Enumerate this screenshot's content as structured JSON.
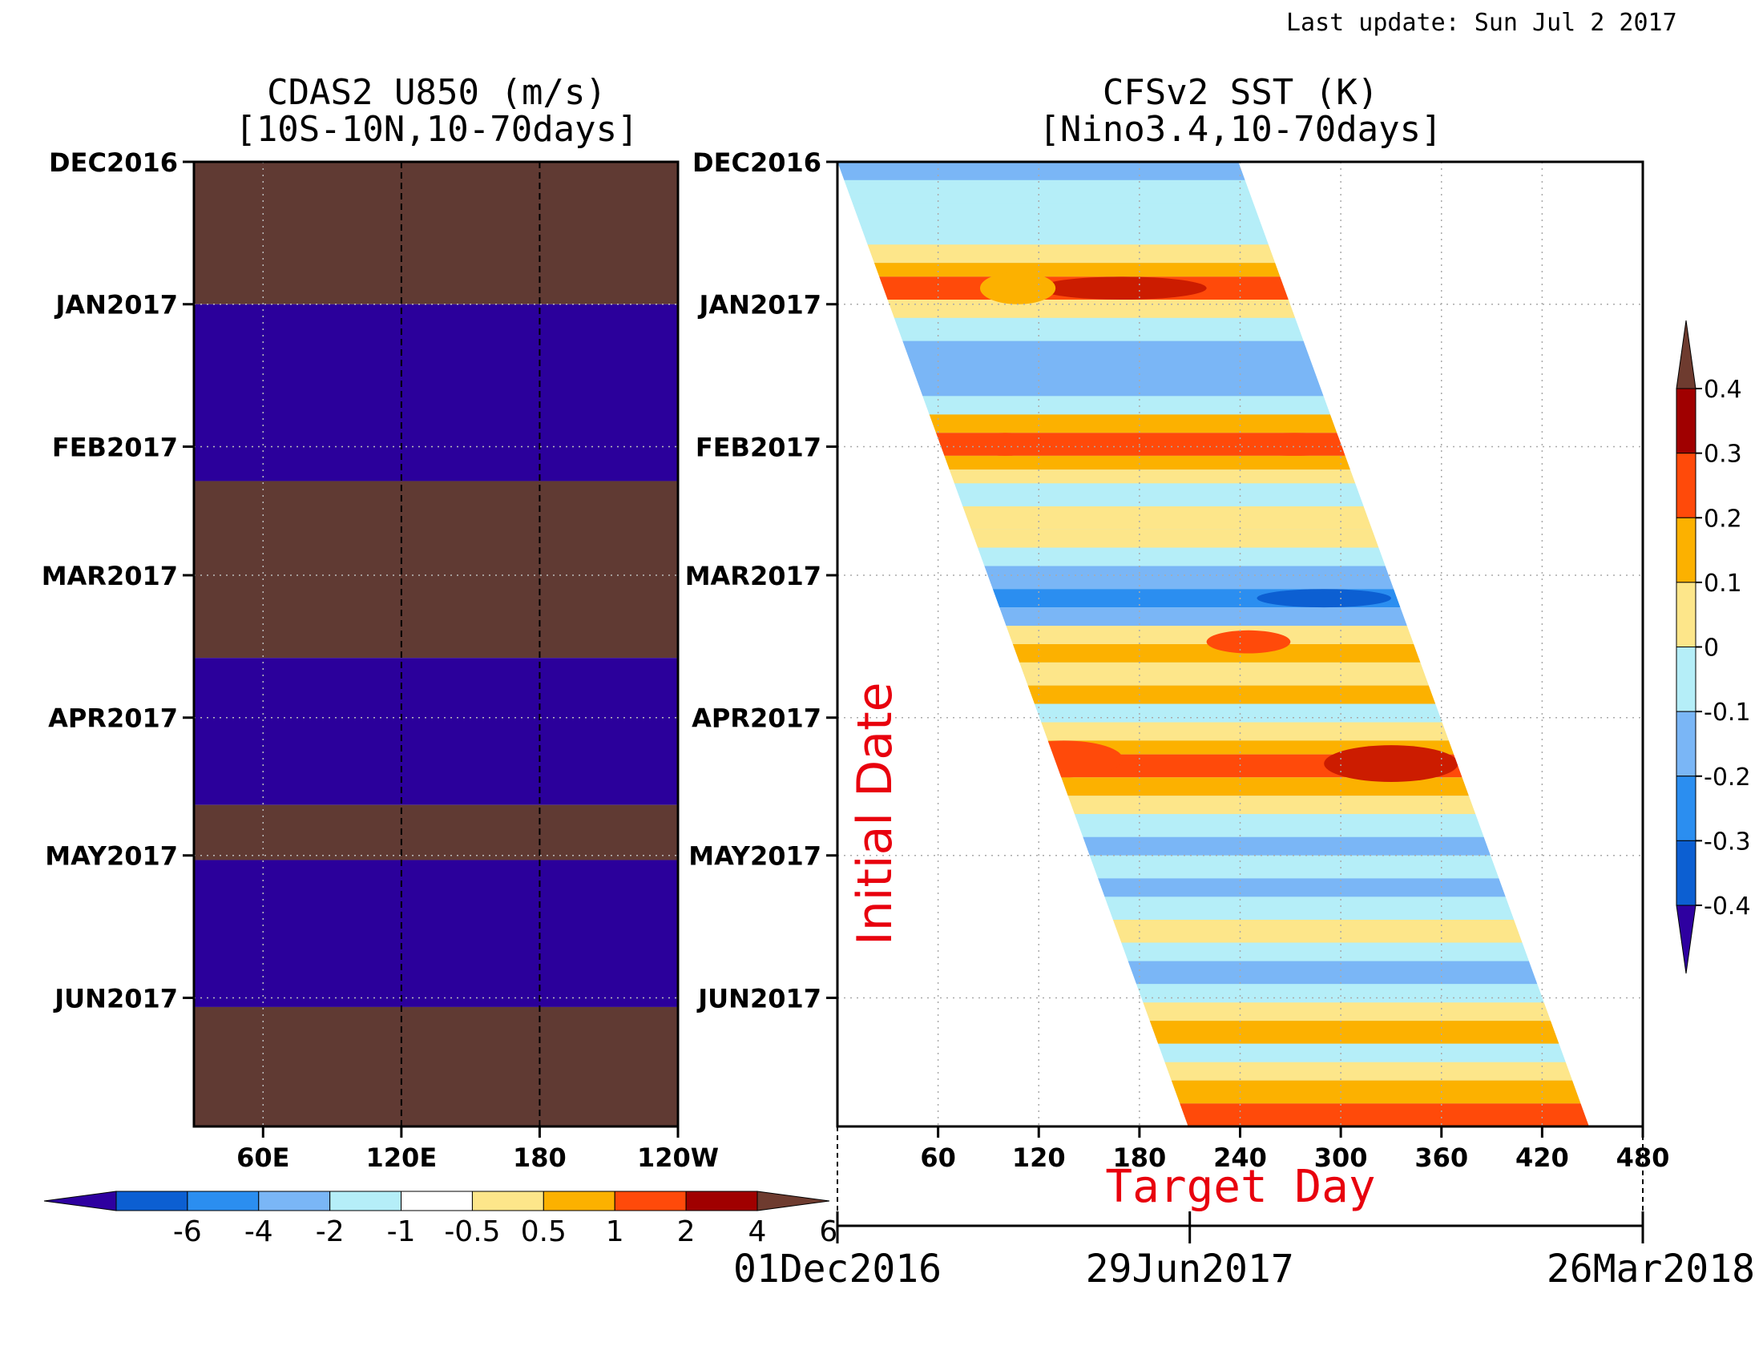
{
  "header": {
    "last_update": "Last update: Sun Jul 2 2017"
  },
  "colors": {
    "u850_positive": "#603a33",
    "u850_negative": "#2b009b",
    "sst_palette": [
      "#2e00a0",
      "#0c5fd2",
      "#2b8ef0",
      "#7ab6f6",
      "#b5eef8",
      "#fde68a",
      "#fcb100",
      "#ff4a0a",
      "#cc1c00",
      "#a00000",
      "#6e3b2f"
    ],
    "target_day_label": "#e8000d",
    "initial_date_label": "#e8000d"
  },
  "chart_data": [
    {
      "type": "heatmap",
      "title": "CDAS2 U850 (m/s)",
      "subtitle": "[10S-10N,10-70days]",
      "xlabel": "",
      "ylabel": "",
      "x_ticks": [
        "60E",
        "120E",
        "180",
        "120W"
      ],
      "x_tick_values": [
        60,
        120,
        180,
        240
      ],
      "xlim": [
        30,
        240
      ],
      "y_ticks": [
        "DEC2016",
        "JAN2017",
        "FEB2017",
        "MAR2017",
        "APR2017",
        "MAY2017",
        "JUN2017"
      ],
      "y_tick_days": [
        0,
        31,
        62,
        90,
        121,
        151,
        182
      ],
      "ylim_days": [
        0,
        210
      ],
      "dashed_meridians": [
        120,
        180
      ],
      "dotted_meridians": [
        60
      ],
      "bands": [
        {
          "from_day": 0,
          "to_day": 31,
          "sign": "positive"
        },
        {
          "from_day": 31,
          "to_day": 69.5,
          "sign": "negative"
        },
        {
          "from_day": 69.5,
          "to_day": 108,
          "sign": "positive"
        },
        {
          "from_day": 108,
          "to_day": 140,
          "sign": "negative"
        },
        {
          "from_day": 140,
          "to_day": 152,
          "sign": "positive"
        },
        {
          "from_day": 152,
          "to_day": 184,
          "sign": "negative"
        },
        {
          "from_day": 184,
          "to_day": 210,
          "sign": "positive"
        }
      ],
      "colorbar": {
        "levels": [
          "-6",
          "-4",
          "-2",
          "-1",
          "-0.5",
          "0.5",
          "1",
          "2",
          "4",
          "6"
        ],
        "colors": [
          "#2e00a0",
          "#0c5fd2",
          "#2b8ef0",
          "#7ab6f6",
          "#b5eef8",
          "#ffffff",
          "#fde68a",
          "#fcb100",
          "#ff4a0a",
          "#a00000",
          "#6e3b2f"
        ]
      }
    },
    {
      "type": "heatmap",
      "title": "CFSv2 SST (K)",
      "subtitle": "[Nino3.4,10-70days]",
      "xlabel": "Target Day",
      "ylabel": "Initial Date",
      "x_ticks": [
        "60",
        "120",
        "180",
        "240",
        "300",
        "360",
        "420",
        "480"
      ],
      "xlim": [
        0,
        480
      ],
      "y_ticks": [
        "DEC2016",
        "JAN2017",
        "FEB2017",
        "MAR2017",
        "APR2017",
        "MAY2017",
        "JUN2017"
      ],
      "y_tick_days": [
        0,
        31,
        62,
        90,
        121,
        151,
        182
      ],
      "ylim_days": [
        0,
        210
      ],
      "valid_region": {
        "left_edge_start": 0,
        "left_edge_end": 209,
        "right_edge_start": 239,
        "right_edge_end": 448
      },
      "bands": [
        {
          "start_day": 0,
          "end_day": 4,
          "value": -0.15
        },
        {
          "start_day": 4,
          "end_day": 9,
          "value": -0.05
        },
        {
          "start_day": 9,
          "end_day": 18,
          "value": -0.05
        },
        {
          "start_day": 18,
          "end_day": 22,
          "value": 0.05
        },
        {
          "start_day": 22,
          "end_day": 25,
          "value": 0.15
        },
        {
          "start_day": 25,
          "end_day": 30,
          "value": 0.22
        },
        {
          "start_day": 30,
          "end_day": 34,
          "value": 0.05
        },
        {
          "start_day": 34,
          "end_day": 39,
          "value": -0.05
        },
        {
          "start_day": 39,
          "end_day": 45,
          "value": -0.15
        },
        {
          "start_day": 45,
          "end_day": 51,
          "value": -0.15
        },
        {
          "start_day": 51,
          "end_day": 55,
          "value": -0.05
        },
        {
          "start_day": 55,
          "end_day": 59,
          "value": 0.15
        },
        {
          "start_day": 59,
          "end_day": 64,
          "value": 0.22
        },
        {
          "start_day": 64,
          "end_day": 67,
          "value": 0.15
        },
        {
          "start_day": 67,
          "end_day": 70,
          "value": 0.05
        },
        {
          "start_day": 70,
          "end_day": 75,
          "value": -0.05
        },
        {
          "start_day": 75,
          "end_day": 80,
          "value": 0.05
        },
        {
          "start_day": 80,
          "end_day": 84,
          "value": 0.05
        },
        {
          "start_day": 84,
          "end_day": 88,
          "value": -0.05
        },
        {
          "start_day": 88,
          "end_day": 93,
          "value": -0.15
        },
        {
          "start_day": 93,
          "end_day": 97,
          "value": -0.25
        },
        {
          "start_day": 97,
          "end_day": 101,
          "value": -0.15
        },
        {
          "start_day": 101,
          "end_day": 105,
          "value": 0.05
        },
        {
          "start_day": 105,
          "end_day": 109,
          "value": 0.15
        },
        {
          "start_day": 109,
          "end_day": 114,
          "value": 0.05
        },
        {
          "start_day": 114,
          "end_day": 118,
          "value": 0.15
        },
        {
          "start_day": 118,
          "end_day": 122,
          "value": -0.05
        },
        {
          "start_day": 122,
          "end_day": 126,
          "value": 0.05
        },
        {
          "start_day": 126,
          "end_day": 129,
          "value": 0.15
        },
        {
          "start_day": 129,
          "end_day": 134,
          "value": 0.25
        },
        {
          "start_day": 134,
          "end_day": 138,
          "value": 0.15
        },
        {
          "start_day": 138,
          "end_day": 142,
          "value": 0.05
        },
        {
          "start_day": 142,
          "end_day": 147,
          "value": -0.05
        },
        {
          "start_day": 147,
          "end_day": 151,
          "value": -0.15
        },
        {
          "start_day": 151,
          "end_day": 156,
          "value": -0.05
        },
        {
          "start_day": 156,
          "end_day": 160,
          "value": -0.15
        },
        {
          "start_day": 160,
          "end_day": 165,
          "value": -0.05
        },
        {
          "start_day": 165,
          "end_day": 170,
          "value": 0.05
        },
        {
          "start_day": 170,
          "end_day": 174,
          "value": -0.05
        },
        {
          "start_day": 174,
          "end_day": 179,
          "value": -0.15
        },
        {
          "start_day": 179,
          "end_day": 183,
          "value": -0.05
        },
        {
          "start_day": 183,
          "end_day": 187,
          "value": 0.05
        },
        {
          "start_day": 187,
          "end_day": 192,
          "value": 0.15
        },
        {
          "start_day": 192,
          "end_day": 196,
          "value": -0.05
        },
        {
          "start_day": 196,
          "end_day": 200,
          "value": 0.05
        },
        {
          "start_day": 200,
          "end_day": 205,
          "value": 0.15
        },
        {
          "start_day": 205,
          "end_day": 210,
          "value": 0.25
        }
      ],
      "blobs": [
        {
          "start_day": 25,
          "end_day": 30,
          "x_from": 120,
          "x_to": 220,
          "value": 0.35
        },
        {
          "start_day": 24,
          "end_day": 31,
          "x_from": 85,
          "x_to": 130,
          "value": 0.15
        },
        {
          "start_day": 59,
          "end_day": 64,
          "x_from": 80,
          "x_to": 120,
          "value": 0.25
        },
        {
          "start_day": 59,
          "end_day": 64,
          "x_from": 235,
          "x_to": 310,
          "value": 0.25
        },
        {
          "start_day": 93,
          "end_day": 97,
          "x_from": 250,
          "x_to": 330,
          "value": -0.35
        },
        {
          "start_day": 126,
          "end_day": 134,
          "x_from": 100,
          "x_to": 170,
          "value": 0.25
        },
        {
          "start_day": 127,
          "end_day": 135,
          "x_from": 290,
          "x_to": 370,
          "value": 0.35
        },
        {
          "start_day": 102,
          "end_day": 107,
          "x_from": 220,
          "x_to": 270,
          "value": 0.25
        }
      ],
      "colorbar": {
        "levels": [
          "0.4",
          "0.3",
          "0.2",
          "0.1",
          "0",
          "-0.1",
          "-0.2",
          "-0.3",
          "-0.4"
        ],
        "colors": [
          "#6e3b2f",
          "#a00000",
          "#ff4a0a",
          "#fcb100",
          "#fde68a",
          "#b5eef8",
          "#7ab6f6",
          "#2b8ef0",
          "#0c5fd2",
          "#2e00a0"
        ]
      },
      "time_axis": {
        "labels": [
          "01Dec2016",
          "29Jun2017",
          "26Mar2018"
        ],
        "label_days": [
          0,
          210,
          480
        ]
      }
    }
  ]
}
